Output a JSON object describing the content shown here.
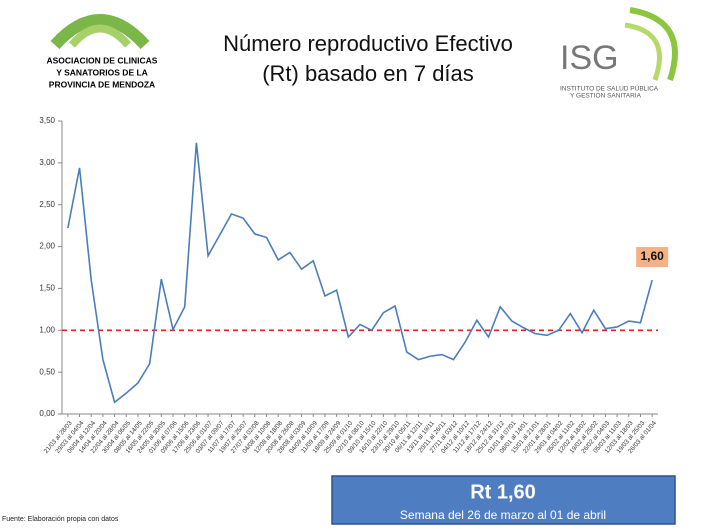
{
  "header": {
    "logo_left": [
      "ASOCIACION DE CLINICAS",
      "Y SANATORIOS DE LA",
      "PROVINCIA DE MENDOZA"
    ],
    "logo_right_name": "ISG",
    "logo_right_sub": [
      "INSTITUTO DE SALUD PÚBLICA",
      "Y GESTIÓN SANITARIA"
    ]
  },
  "chart_data": {
    "type": "line",
    "title": [
      "Número reproductivo Efectivo",
      "(Rt) basado en 7 días"
    ],
    "categories": [
      "21/03 al 28/03",
      "29/03 al 04/04",
      "06/04 al 12/04",
      "14/04 al 20/04",
      "22/04 al 28/04",
      "30/04 al 06/05",
      "08/05 al 14/05",
      "16/05 al 22/05",
      "24/05 al 30/05",
      "01/06 al 07/06",
      "09/06 al 15/06",
      "17/06 al 23/06",
      "25/06 al 01/07",
      "03/07 al 09/07",
      "11/07 al 17/07",
      "19/07 al 25/07",
      "27/07 al 02/08",
      "04/08 al 10/08",
      "12/08 al 18/08",
      "20/08 al 26/08",
      "28/08 al 03/09",
      "04/09 al 10/09",
      "11/09 al 17/09",
      "18/09 al 24/09",
      "25/09 al 01/10",
      "02/10 al 08/10",
      "09/10 al 15/10",
      "16/10 al 22/10",
      "23/10 al 29/10",
      "30/10 al 05/11",
      "06/11 al 12/11",
      "13/11 al 19/11",
      "20/11 al 26/11",
      "27/11 al 03/12",
      "04/12 al 10/12",
      "11/12 al 17/12",
      "18/12 al 24/12",
      "25/12 al 31/12",
      "01/01 al 07/01",
      "08/01 al 14/01",
      "15/01 al 21/01",
      "22/01 al 28/01",
      "29/01 al 04/02",
      "05/02 al 11/02",
      "12/02 al 18/02",
      "19/02 al 25/02",
      "26/02 al 04/03",
      "05/03 al 11/03",
      "12/03 al 18/03",
      "19/03 al 25/03",
      "26/03 al 01/04"
    ],
    "values": [
      2.22,
      2.94,
      1.6,
      0.65,
      0.14,
      0.25,
      0.37,
      0.6,
      1.61,
      1.01,
      1.28,
      3.24,
      1.89,
      2.14,
      2.39,
      2.34,
      2.15,
      2.11,
      1.84,
      1.93,
      1.73,
      1.83,
      1.41,
      1.48,
      0.92,
      1.07,
      1.0,
      1.21,
      1.29,
      0.74,
      0.65,
      0.69,
      0.71,
      0.65,
      0.86,
      1.12,
      0.92,
      1.28,
      1.11,
      1.03,
      0.96,
      0.94,
      1.0,
      1.2,
      0.97,
      1.24,
      1.02,
      1.04,
      1.11,
      1.09,
      1.6
    ],
    "value_labels": [
      null,
      null,
      null,
      null,
      null,
      null,
      null,
      null,
      null,
      null,
      null,
      null,
      null,
      null,
      null,
      null,
      null,
      null,
      null,
      null,
      null,
      null,
      null,
      null,
      null,
      null,
      null,
      null,
      null,
      null,
      null,
      null,
      null,
      null,
      null,
      null,
      null,
      null,
      null,
      null,
      null,
      null,
      null,
      null,
      null,
      null,
      null,
      null,
      null,
      null,
      "1,60"
    ],
    "color": "#4a7ebb",
    "reference_line": {
      "value": 1,
      "color": "#e02020"
    },
    "ylim": [
      0,
      3.5
    ],
    "yticks": [
      {
        "value": 0,
        "label": "0,00"
      },
      {
        "value": 0.5,
        "label": "0,50"
      },
      {
        "value": 1,
        "label": "1,00"
      },
      {
        "value": 1.5,
        "label": "1,50"
      },
      {
        "value": 2,
        "label": "2,00"
      },
      {
        "value": 2.5,
        "label": "2,50"
      },
      {
        "value": 3,
        "label": "3,00"
      },
      {
        "value": 3.5,
        "label": "3,50"
      }
    ]
  },
  "summary": {
    "value": "Rt 1,60",
    "subtitle": "Semana del 26 de marzo al 01 de abril"
  },
  "footer": "Fuente: Elaboración propia con datos"
}
